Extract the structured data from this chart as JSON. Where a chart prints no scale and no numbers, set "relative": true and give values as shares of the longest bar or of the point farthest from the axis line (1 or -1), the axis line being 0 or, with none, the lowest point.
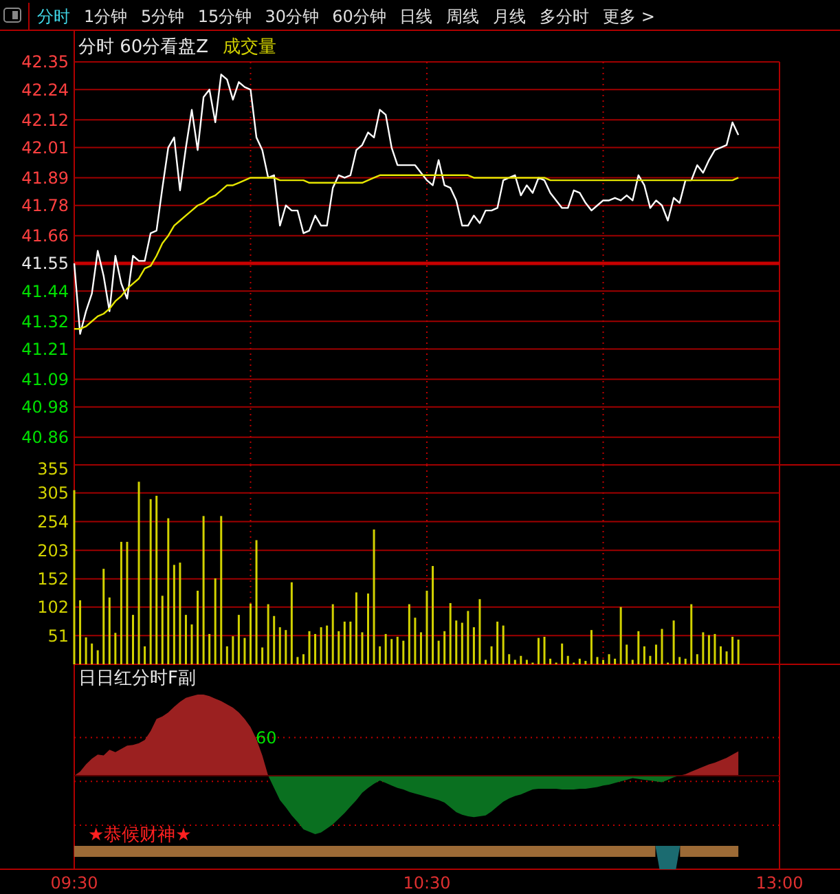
{
  "chart_data": [
    {
      "type": "line",
      "title": "分时 60分看盘Z",
      "subtitle": "成交量",
      "annotations": [
        "分时",
        "1分钟",
        "5分钟",
        "15分钟",
        "30分钟",
        "60分钟",
        "日线",
        "周线",
        "月线",
        "多分时",
        "更多 >"
      ],
      "categories": [
        null,
        null,
        null,
        null,
        null,
        null,
        null,
        null,
        null,
        null,
        null,
        null,
        null,
        null,
        null,
        null,
        null,
        null,
        null,
        null,
        null,
        null,
        null,
        null,
        null,
        null,
        null,
        null,
        null,
        null,
        null,
        null,
        null,
        null,
        null,
        null,
        null,
        null,
        null,
        null,
        null,
        null,
        null,
        null,
        null,
        null,
        null,
        null,
        null,
        null,
        null,
        null,
        null,
        null,
        null,
        null,
        null,
        null,
        null,
        null,
        null,
        null,
        null,
        null,
        null,
        null,
        null,
        null,
        null,
        null,
        null,
        null,
        null,
        null,
        null,
        null,
        null,
        null,
        null,
        null,
        null,
        null,
        null,
        null,
        null,
        null,
        null,
        null,
        null,
        null,
        null,
        null,
        null,
        null,
        null,
        null,
        null,
        null,
        null,
        null,
        null,
        null,
        null,
        null,
        null,
        null,
        null,
        null,
        null,
        null,
        null,
        null,
        null,
        null,
        null,
        null,
        null,
        null,
        null,
        null,
        null
      ],
      "ylim": [
        40.75,
        42.35
      ],
      "yticks": [
        40.86,
        40.98,
        41.09,
        41.21,
        41.32,
        41.44,
        41.55,
        41.66,
        41.78,
        41.89,
        42.01,
        42.12,
        42.24,
        42.35
      ],
      "grid": true,
      "tick_labels": "y",
      "ref_lines": [
        {
          "axis": "y",
          "value": 41.55,
          "color": "#c80000"
        }
      ],
      "series": [
        {
          "color": "#ffffff",
          "values": [
            41.55,
            41.27,
            41.36,
            41.43,
            41.6,
            41.5,
            41.36,
            41.58,
            41.47,
            41.41,
            41.58,
            41.56,
            41.56,
            41.67,
            41.68,
            41.85,
            42.01,
            42.05,
            41.84,
            42.01,
            42.16,
            42.0,
            42.21,
            42.24,
            42.11,
            42.3,
            42.28,
            42.2,
            42.27,
            42.25,
            42.24,
            42.05,
            42.0,
            41.89,
            41.9,
            41.7,
            41.78,
            41.76,
            41.76,
            41.67,
            41.68,
            41.74,
            41.7,
            41.7,
            41.85,
            41.9,
            41.89,
            41.9,
            42.0,
            42.02,
            42.07,
            42.05,
            42.16,
            42.14,
            42.01,
            41.94,
            41.94,
            41.94,
            41.94,
            41.91,
            41.88,
            41.86,
            41.96,
            41.86,
            41.85,
            41.8,
            41.7,
            41.7,
            41.74,
            41.71,
            41.76,
            41.76,
            41.77,
            41.88,
            41.89,
            41.9,
            41.82,
            41.86,
            41.83,
            41.89,
            41.88,
            41.83,
            41.8,
            41.77,
            41.77,
            41.84,
            41.83,
            41.79,
            41.76,
            41.78,
            41.8,
            41.8,
            41.81,
            41.8,
            41.82,
            41.8,
            41.9,
            41.86,
            41.77,
            41.8,
            41.78,
            41.72,
            41.81,
            41.79,
            41.88,
            41.88,
            41.94,
            41.91,
            41.96,
            42.0,
            42.01,
            42.02,
            42.11,
            42.06,
            null,
            null,
            null,
            null,
            null,
            null,
            null
          ]
        },
        {
          "color": "#e6e600",
          "values": [
            41.29,
            41.29,
            41.3,
            41.32,
            41.34,
            41.35,
            41.37,
            41.4,
            41.42,
            41.45,
            41.47,
            41.49,
            41.53,
            41.54,
            41.58,
            41.63,
            41.66,
            41.7,
            41.72,
            41.74,
            41.76,
            41.78,
            41.79,
            41.81,
            41.82,
            41.84,
            41.86,
            41.86,
            41.87,
            41.88,
            41.89,
            41.89,
            41.89,
            41.89,
            41.89,
            41.88,
            41.88,
            41.88,
            41.88,
            41.88,
            41.87,
            41.87,
            41.87,
            41.87,
            41.87,
            41.87,
            41.87,
            41.87,
            41.87,
            41.87,
            41.88,
            41.89,
            41.9,
            41.9,
            41.9,
            41.9,
            41.9,
            41.9,
            41.9,
            41.9,
            41.9,
            41.9,
            41.9,
            41.9,
            41.9,
            41.9,
            41.9,
            41.9,
            41.89,
            41.89,
            41.89,
            41.89,
            41.89,
            41.89,
            41.89,
            41.89,
            41.89,
            41.89,
            41.89,
            41.89,
            41.89,
            41.88,
            41.88,
            41.88,
            41.88,
            41.88,
            41.88,
            41.88,
            41.88,
            41.88,
            41.88,
            41.88,
            41.88,
            41.88,
            41.88,
            41.88,
            41.88,
            41.88,
            41.88,
            41.88,
            41.88,
            41.88,
            41.88,
            41.88,
            41.88,
            41.88,
            41.88,
            41.88,
            41.88,
            41.88,
            41.88,
            41.88,
            41.88,
            41.89,
            null,
            null,
            null,
            null,
            null,
            null,
            null
          ]
        }
      ]
    },
    {
      "type": "bar",
      "color": "#d2d200",
      "ylim": [
        0,
        355
      ],
      "yticks": [
        51,
        102,
        152,
        203,
        254,
        305,
        355
      ],
      "grid": true,
      "tick_labels": "y",
      "categories": [
        null,
        null,
        null,
        null,
        null,
        null,
        null,
        null,
        null,
        null,
        null,
        null,
        null,
        null,
        null,
        null,
        null,
        null,
        null,
        null,
        null,
        null,
        null,
        null,
        null,
        null,
        null,
        null,
        null,
        null,
        null,
        null,
        null,
        null,
        null,
        null,
        null,
        null,
        null,
        null,
        null,
        null,
        null,
        null,
        null,
        null,
        null,
        null,
        null,
        null,
        null,
        null,
        null,
        null,
        null,
        null,
        null,
        null,
        null,
        null,
        null,
        null,
        null,
        null,
        null,
        null,
        null,
        null,
        null,
        null,
        null,
        null,
        null,
        null,
        null,
        null,
        null,
        null,
        null,
        null,
        null,
        null,
        null,
        null,
        null,
        null,
        null,
        null,
        null,
        null,
        null,
        null,
        null,
        null,
        null,
        null,
        null,
        null,
        null,
        null,
        null,
        null,
        null,
        null,
        null,
        null,
        null,
        null,
        null,
        null,
        null,
        null,
        null,
        null,
        null,
        null,
        null,
        null,
        null,
        null,
        null
      ],
      "values": [
        310,
        114,
        48,
        37,
        25,
        170,
        119,
        56,
        218,
        218,
        88,
        325,
        32,
        294,
        300,
        122,
        260,
        177,
        181,
        88,
        71,
        131,
        264,
        54,
        153,
        264,
        32,
        50,
        88,
        47,
        108,
        221,
        30,
        107,
        86,
        66,
        61,
        146,
        13,
        18,
        59,
        54,
        66,
        69,
        107,
        59,
        76,
        76,
        128,
        57,
        126,
        240,
        32,
        54,
        45,
        49,
        42,
        107,
        83,
        57,
        131,
        175,
        42,
        59,
        109,
        78,
        74,
        95,
        66,
        116,
        8,
        32,
        76,
        69,
        18,
        8,
        15,
        8,
        3,
        47,
        49,
        10,
        3,
        37,
        15,
        3,
        10,
        6,
        61,
        13,
        8,
        18,
        10,
        102,
        35,
        8,
        59,
        32,
        15,
        35,
        63,
        3,
        78,
        13,
        10,
        107,
        18,
        57,
        52,
        54,
        32,
        23,
        49,
        44,
        null,
        null,
        null,
        null,
        null,
        null,
        null
      ]
    },
    {
      "type": "area",
      "title": "日日红分时F副",
      "relative": true,
      "tick_labels": "x",
      "categories": [
        "09:30",
        null,
        null,
        null,
        null,
        null,
        null,
        null,
        null,
        null,
        null,
        null,
        null,
        null,
        null,
        null,
        null,
        null,
        null,
        null,
        null,
        null,
        null,
        null,
        null,
        null,
        null,
        null,
        null,
        null,
        null,
        null,
        null,
        null,
        null,
        null,
        null,
        null,
        null,
        null,
        null,
        null,
        null,
        null,
        null,
        null,
        null,
        null,
        null,
        null,
        null,
        null,
        null,
        null,
        null,
        null,
        null,
        null,
        null,
        null,
        "10:30",
        null,
        null,
        null,
        null,
        null,
        null,
        null,
        null,
        null,
        null,
        null,
        null,
        null,
        null,
        null,
        null,
        null,
        null,
        null,
        null,
        null,
        null,
        null,
        null,
        null,
        null,
        null,
        null,
        null,
        null,
        null,
        null,
        null,
        null,
        null,
        null,
        null,
        null,
        null,
        null,
        null,
        null,
        null,
        null,
        null,
        null,
        null,
        null,
        null,
        null,
        null,
        null,
        null,
        null,
        null,
        null,
        null,
        null,
        null,
        "13:00"
      ],
      "ref_lines": [
        {
          "axis": "y",
          "value": 0.47,
          "line_style": "dotted",
          "color": "#c00000"
        },
        {
          "axis": "y",
          "value": -0.07,
          "line_style": "dotted",
          "color": "#c00000"
        },
        {
          "axis": "y",
          "value": -0.61,
          "line_style": "dotted",
          "color": "#c00000"
        }
      ],
      "annotations": [
        "★恭候财神★",
        "60"
      ],
      "series": [
        {
          "color": "#9b2020",
          "values": [
            0,
            0.05,
            0.14,
            0.21,
            0.26,
            0.25,
            0.32,
            0.29,
            0.33,
            0.37,
            0.38,
            0.4,
            0.44,
            0.55,
            0.7,
            0.73,
            0.78,
            0.85,
            0.91,
            0.96,
            0.98,
            1,
            1,
            0.98,
            0.95,
            0.92,
            0.88,
            0.84,
            0.78,
            0.7,
            0.6,
            0.45,
            0.25,
            0,
            null,
            null,
            null,
            null,
            null,
            null,
            null,
            null,
            null,
            null,
            null,
            null,
            null,
            null,
            null,
            null,
            null,
            null,
            null,
            null,
            null,
            null,
            null,
            null,
            null,
            null,
            null,
            null,
            null,
            null,
            null,
            null,
            null,
            null,
            null,
            null,
            null,
            null,
            null,
            null,
            null,
            null,
            null,
            null,
            null,
            null,
            null,
            null,
            null,
            null,
            null,
            null,
            null,
            null,
            null,
            null,
            null,
            null,
            null,
            null,
            null,
            null,
            null,
            null,
            null,
            null,
            null,
            null,
            null,
            0,
            0.02,
            0.05,
            0.08,
            0.11,
            0.14,
            0.16,
            0.19,
            0.22,
            0.26,
            0.3,
            null,
            null,
            null,
            null,
            null,
            null,
            null
          ]
        },
        {
          "color": "#0a7020",
          "values": [
            null,
            null,
            null,
            null,
            null,
            null,
            null,
            null,
            null,
            null,
            null,
            null,
            null,
            null,
            null,
            null,
            null,
            null,
            null,
            null,
            null,
            null,
            null,
            null,
            null,
            null,
            null,
            null,
            null,
            null,
            null,
            null,
            null,
            0,
            -0.15,
            -0.3,
            -0.39,
            -0.49,
            -0.57,
            -0.66,
            -0.69,
            -0.72,
            -0.7,
            -0.65,
            -0.6,
            -0.53,
            -0.46,
            -0.38,
            -0.3,
            -0.21,
            -0.15,
            -0.1,
            -0.06,
            -0.09,
            -0.12,
            -0.15,
            -0.17,
            -0.2,
            -0.22,
            -0.24,
            -0.26,
            -0.28,
            -0.3,
            -0.33,
            -0.39,
            -0.45,
            -0.48,
            -0.5,
            -0.51,
            -0.5,
            -0.49,
            -0.44,
            -0.38,
            -0.32,
            -0.28,
            -0.25,
            -0.23,
            -0.2,
            -0.17,
            -0.16,
            -0.16,
            -0.16,
            -0.16,
            -0.17,
            -0.17,
            -0.17,
            -0.16,
            -0.16,
            -0.15,
            -0.14,
            -0.12,
            -0.11,
            -0.09,
            -0.07,
            -0.05,
            -0.03,
            -0.04,
            -0.05,
            -0.06,
            -0.07,
            -0.08,
            -0.05,
            -0.02,
            0,
            null,
            null,
            null,
            null,
            null,
            null,
            null,
            null,
            null,
            null,
            null,
            null,
            null,
            null,
            null,
            null,
            null
          ]
        }
      ]
    }
  ]
}
